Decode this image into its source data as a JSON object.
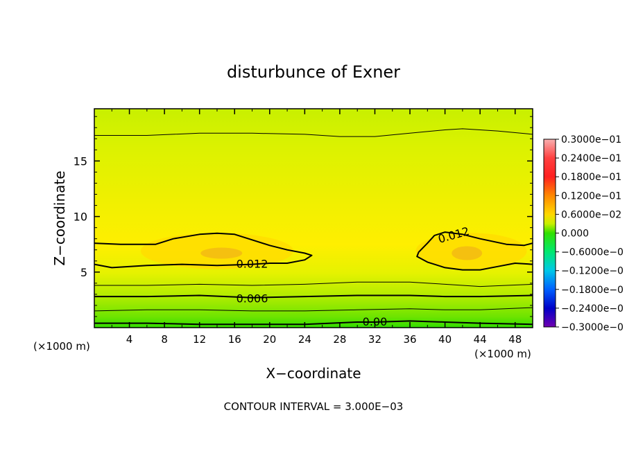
{
  "chart_data": {
    "type": "contour",
    "title": "disturbunce of Exner",
    "xlabel": "X−coordinate",
    "ylabel": "Z−coordinate",
    "x_unit_left": "(×1000 m)",
    "x_unit_right": "(×1000 m)",
    "xlim": [
      0,
      50
    ],
    "ylim": [
      0,
      19.7
    ],
    "x_ticks": [
      4,
      8,
      12,
      16,
      20,
      24,
      28,
      32,
      36,
      40,
      44,
      48
    ],
    "y_ticks": [
      5,
      10,
      15
    ],
    "footer": "CONTOUR INTERVAL = 3.000E−03",
    "contour_labels": [
      {
        "text": "0.012",
        "x": 18,
        "z": 5.7
      },
      {
        "text": "0.012",
        "x": 41,
        "z": 8.3
      },
      {
        "text": "0.006",
        "x": 18,
        "z": 2.6
      },
      {
        "text": "0.00",
        "x": 32,
        "z": 0.5
      }
    ],
    "contours": [
      {
        "level": 0.0,
        "bold": true,
        "points": [
          [
            0,
            0.4
          ],
          [
            6,
            0.4
          ],
          [
            12,
            0.3
          ],
          [
            18,
            0.3
          ],
          [
            24,
            0.3
          ],
          [
            30,
            0.5
          ],
          [
            32,
            0.5
          ],
          [
            36,
            0.6
          ],
          [
            40,
            0.5
          ],
          [
            44,
            0.4
          ],
          [
            50,
            0.3
          ]
        ]
      },
      {
        "level": 0.003,
        "bold": false,
        "points": [
          [
            0,
            1.5
          ],
          [
            6,
            1.6
          ],
          [
            12,
            1.6
          ],
          [
            18,
            1.5
          ],
          [
            24,
            1.5
          ],
          [
            30,
            1.6
          ],
          [
            36,
            1.7
          ],
          [
            40,
            1.6
          ],
          [
            44,
            1.6
          ],
          [
            50,
            1.8
          ]
        ]
      },
      {
        "level": 0.006,
        "bold": true,
        "points": [
          [
            0,
            2.8
          ],
          [
            6,
            2.8
          ],
          [
            12,
            2.9
          ],
          [
            18,
            2.7
          ],
          [
            24,
            2.8
          ],
          [
            30,
            2.9
          ],
          [
            36,
            2.9
          ],
          [
            40,
            2.8
          ],
          [
            44,
            2.8
          ],
          [
            50,
            2.9
          ]
        ]
      },
      {
        "level": 0.009,
        "bold": false,
        "points": [
          [
            0,
            3.8
          ],
          [
            6,
            3.8
          ],
          [
            12,
            3.9
          ],
          [
            18,
            3.8
          ],
          [
            24,
            3.9
          ],
          [
            30,
            4.1
          ],
          [
            36,
            4.1
          ],
          [
            40,
            3.9
          ],
          [
            44,
            3.7
          ],
          [
            50,
            3.9
          ]
        ]
      },
      {
        "level": 0.012,
        "bold": true,
        "points": [
          [
            0,
            7.6
          ],
          [
            3,
            7.5
          ],
          [
            7,
            7.5
          ],
          [
            9,
            8.0
          ],
          [
            12,
            8.4
          ],
          [
            14,
            8.5
          ],
          [
            16,
            8.4
          ],
          [
            18,
            7.9
          ],
          [
            20,
            7.4
          ],
          [
            22,
            7.0
          ],
          [
            24,
            6.7
          ],
          [
            24.8,
            6.5
          ],
          [
            24,
            6.1
          ],
          [
            22,
            5.8
          ],
          [
            20,
            5.8
          ],
          [
            18,
            5.7
          ],
          [
            14,
            5.6
          ],
          [
            10,
            5.7
          ],
          [
            6,
            5.6
          ],
          [
            2,
            5.4
          ],
          [
            0,
            5.7
          ]
        ]
      },
      {
        "level": 0.012,
        "bold": true,
        "points": [
          [
            50,
            7.6
          ],
          [
            49,
            7.4
          ],
          [
            47,
            7.5
          ],
          [
            44,
            8.0
          ],
          [
            42,
            8.4
          ],
          [
            40,
            8.6
          ],
          [
            38.8,
            8.3
          ],
          [
            38,
            7.6
          ],
          [
            37,
            6.8
          ],
          [
            36.8,
            6.4
          ],
          [
            38,
            5.9
          ],
          [
            40,
            5.4
          ],
          [
            42,
            5.2
          ],
          [
            44,
            5.2
          ],
          [
            46,
            5.5
          ],
          [
            48,
            5.8
          ],
          [
            50,
            5.7
          ]
        ]
      },
      {
        "level": 0.012,
        "bold": false,
        "points": [
          [
            0,
            17.3
          ],
          [
            6,
            17.3
          ],
          [
            12,
            17.5
          ],
          [
            18,
            17.5
          ],
          [
            24,
            17.4
          ],
          [
            28,
            17.2
          ],
          [
            32,
            17.2
          ],
          [
            36,
            17.5
          ],
          [
            40,
            17.8
          ],
          [
            42,
            17.9
          ],
          [
            46,
            17.7
          ],
          [
            50,
            17.4
          ]
        ]
      }
    ],
    "colorbar": {
      "labels": [
        "0.3000e−01",
        "0.2400e−01",
        "0.1800e−01",
        "0.1200e−01",
        "0.6000e−02",
        "0.000",
        "−0.6000e−0",
        "−0.1200e−0",
        "−0.1800e−0",
        "−0.2400e−0",
        "−0.3000e−0"
      ],
      "colors_top_to_bottom": [
        "#f8b0b0",
        "#ff2020",
        "#ff8800",
        "#ffd800",
        "#c8f000",
        "#30e000",
        "#00e870",
        "#00c8e8",
        "#0060ff",
        "#0000c8",
        "#7000b0"
      ]
    },
    "fill_colors": {
      "core": "#f5c010",
      "high": "#ffdd00",
      "mid": "#f0f000",
      "mid_low": "#d6f200",
      "low": "#b6ec00",
      "lower": "#8ce800",
      "bottom": "#48dc00"
    }
  }
}
